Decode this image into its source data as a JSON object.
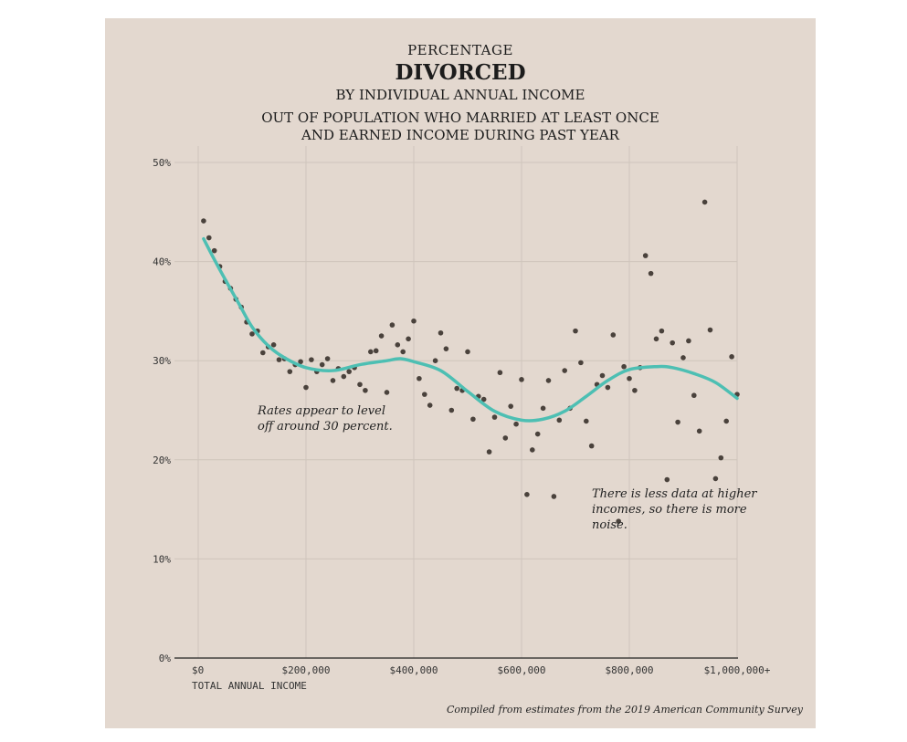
{
  "title": {
    "line1": "PERCENTAGE",
    "line2": "DIVORCED",
    "line3": "BY INDIVIDUAL ANNUAL INCOME",
    "line4a": "OUT OF POPULATION WHO MARRIED AT LEAST ONCE",
    "line4b": "AND EARNED INCOME DURING PAST YEAR"
  },
  "annotations": {
    "left": "Rates appear to level off around 30 percent.",
    "right": "There is less data at higher incomes, so there is more noise."
  },
  "caption": "Compiled from estimates from the 2019 American Community Survey",
  "colors": {
    "background": "#e3d8cf",
    "trend": "#4dbfb3",
    "points": "#4a423c",
    "grid": "#cfc5bc"
  },
  "chart_data": {
    "type": "scatter",
    "xlabel": "TOTAL ANNUAL INCOME",
    "ylabel": "",
    "xlim": [
      0,
      1000000
    ],
    "ylim": [
      0,
      50
    ],
    "x_ticks": [
      0,
      200000,
      400000,
      600000,
      800000,
      1000000
    ],
    "x_tick_labels": [
      "$0",
      "$200,000",
      "$400,000",
      "$600,000",
      "$800,000",
      "$1,000,000+"
    ],
    "y_ticks": [
      0,
      10,
      20,
      30,
      40,
      50
    ],
    "y_tick_labels": [
      "0%",
      "10%",
      "20%",
      "30%",
      "40%",
      "50%"
    ],
    "grid": true,
    "points": [
      [
        10000,
        44.1
      ],
      [
        20000,
        42.4
      ],
      [
        30000,
        41.1
      ],
      [
        40000,
        39.5
      ],
      [
        50000,
        38.0
      ],
      [
        60000,
        37.3
      ],
      [
        70000,
        36.2
      ],
      [
        80000,
        35.4
      ],
      [
        90000,
        33.9
      ],
      [
        100000,
        32.7
      ],
      [
        110000,
        33.0
      ],
      [
        120000,
        30.8
      ],
      [
        130000,
        31.4
      ],
      [
        140000,
        31.6
      ],
      [
        150000,
        30.1
      ],
      [
        160000,
        30.2
      ],
      [
        170000,
        28.9
      ],
      [
        180000,
        29.6
      ],
      [
        190000,
        29.9
      ],
      [
        200000,
        27.3
      ],
      [
        210000,
        30.1
      ],
      [
        220000,
        28.9
      ],
      [
        230000,
        29.6
      ],
      [
        240000,
        30.2
      ],
      [
        250000,
        28.0
      ],
      [
        260000,
        29.2
      ],
      [
        270000,
        28.4
      ],
      [
        280000,
        28.9
      ],
      [
        290000,
        29.3
      ],
      [
        300000,
        27.6
      ],
      [
        310000,
        27.0
      ],
      [
        320000,
        30.9
      ],
      [
        330000,
        31.0
      ],
      [
        340000,
        32.5
      ],
      [
        350000,
        26.8
      ],
      [
        360000,
        33.6
      ],
      [
        370000,
        31.6
      ],
      [
        380000,
        30.9
      ],
      [
        390000,
        32.2
      ],
      [
        400000,
        34.0
      ],
      [
        410000,
        28.2
      ],
      [
        420000,
        26.6
      ],
      [
        430000,
        25.5
      ],
      [
        440000,
        30.0
      ],
      [
        450000,
        32.8
      ],
      [
        460000,
        31.2
      ],
      [
        470000,
        25.0
      ],
      [
        480000,
        27.2
      ],
      [
        490000,
        27.0
      ],
      [
        500000,
        30.9
      ],
      [
        510000,
        24.1
      ],
      [
        520000,
        26.4
      ],
      [
        530000,
        26.1
      ],
      [
        540000,
        20.8
      ],
      [
        550000,
        24.3
      ],
      [
        560000,
        28.8
      ],
      [
        570000,
        22.2
      ],
      [
        580000,
        25.4
      ],
      [
        590000,
        23.6
      ],
      [
        600000,
        28.1
      ],
      [
        610000,
        16.5
      ],
      [
        620000,
        21.0
      ],
      [
        630000,
        22.6
      ],
      [
        640000,
        25.2
      ],
      [
        650000,
        28.0
      ],
      [
        660000,
        16.3
      ],
      [
        670000,
        24.0
      ],
      [
        680000,
        29.0
      ],
      [
        690000,
        25.2
      ],
      [
        700000,
        33.0
      ],
      [
        710000,
        29.8
      ],
      [
        720000,
        23.9
      ],
      [
        730000,
        21.4
      ],
      [
        740000,
        27.6
      ],
      [
        750000,
        28.5
      ],
      [
        760000,
        27.3
      ],
      [
        770000,
        32.6
      ],
      [
        780000,
        13.8
      ],
      [
        790000,
        29.4
      ],
      [
        800000,
        28.2
      ],
      [
        810000,
        27.0
      ],
      [
        820000,
        29.3
      ],
      [
        830000,
        40.6
      ],
      [
        840000,
        38.8
      ],
      [
        850000,
        32.2
      ],
      [
        860000,
        33.0
      ],
      [
        870000,
        18.0
      ],
      [
        880000,
        31.8
      ],
      [
        890000,
        23.8
      ],
      [
        900000,
        30.3
      ],
      [
        910000,
        32.0
      ],
      [
        920000,
        26.5
      ],
      [
        930000,
        22.9
      ],
      [
        940000,
        46.0
      ],
      [
        950000,
        33.1
      ],
      [
        960000,
        18.1
      ],
      [
        970000,
        20.2
      ],
      [
        980000,
        23.9
      ],
      [
        990000,
        30.4
      ],
      [
        1000000,
        26.6
      ]
    ],
    "trend": [
      [
        10000,
        42.3
      ],
      [
        30000,
        40.2
      ],
      [
        50000,
        38.2
      ],
      [
        75000,
        35.8
      ],
      [
        100000,
        33.4
      ],
      [
        130000,
        31.5
      ],
      [
        160000,
        30.3
      ],
      [
        200000,
        29.3
      ],
      [
        250000,
        29.0
      ],
      [
        300000,
        29.6
      ],
      [
        350000,
        30.0
      ],
      [
        375000,
        30.2
      ],
      [
        400000,
        29.9
      ],
      [
        450000,
        29.0
      ],
      [
        500000,
        26.9
      ],
      [
        550000,
        24.9
      ],
      [
        600000,
        24.0
      ],
      [
        640000,
        24.1
      ],
      [
        680000,
        24.9
      ],
      [
        720000,
        26.4
      ],
      [
        760000,
        28.0
      ],
      [
        800000,
        29.1
      ],
      [
        850000,
        29.4
      ],
      [
        880000,
        29.3
      ],
      [
        920000,
        28.7
      ],
      [
        960000,
        27.8
      ],
      [
        1000000,
        26.2
      ]
    ]
  }
}
